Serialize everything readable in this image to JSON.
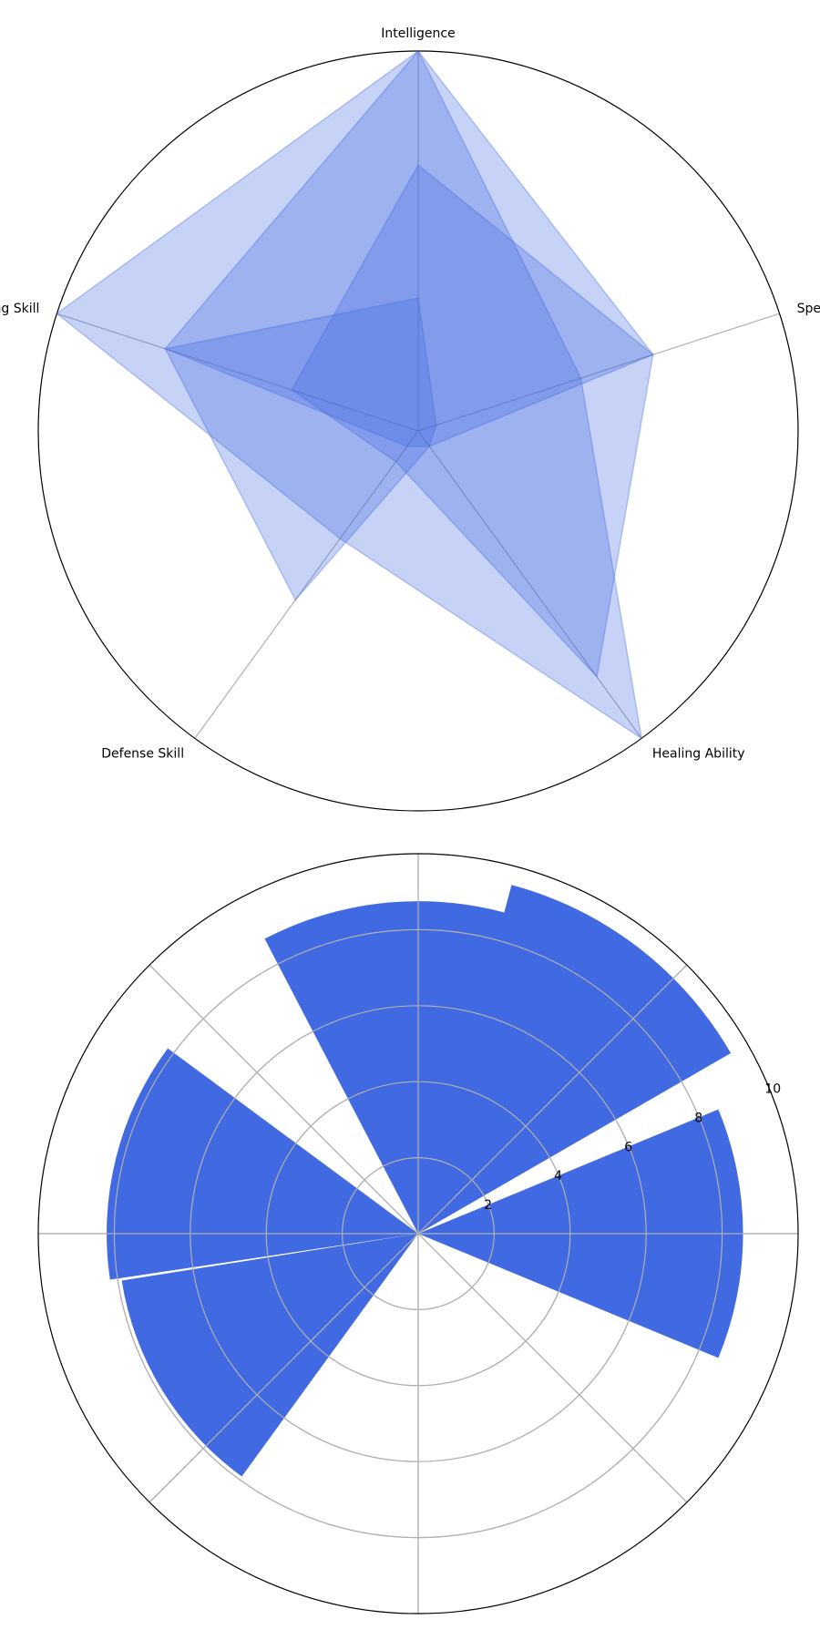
{
  "chart_data": [
    {
      "type": "radar",
      "categories": [
        "Intelligence",
        "Spell Power",
        "Healing Ability",
        "Defense Skill",
        "Summoning Skill"
      ],
      "rlim": [
        0,
        10
      ],
      "grid": true,
      "fill_color": "#4169e1",
      "series": [
        {
          "values": [
            10,
            4.5,
            10,
            3.5,
            10
          ]
        },
        {
          "values": [
            7,
            6.5,
            8,
            1,
            3.5
          ]
        },
        {
          "values": [
            3.5,
            0.5,
            0.5,
            0.5,
            7
          ]
        },
        {
          "values": [
            10,
            6.5,
            0.5,
            5.5,
            7
          ]
        }
      ]
    },
    {
      "type": "polar-bar",
      "theta_degrees": [
        0,
        52.5,
        95,
        166,
        211.5
      ],
      "width_degrees": 45,
      "values": [
        8.55,
        9.5,
        8.75,
        8.2,
        7.9
      ],
      "rlim": [
        0,
        10
      ],
      "rticks": [
        2,
        4,
        6,
        8,
        10
      ],
      "bar_color": "#4169e1",
      "grid": true
    }
  ]
}
